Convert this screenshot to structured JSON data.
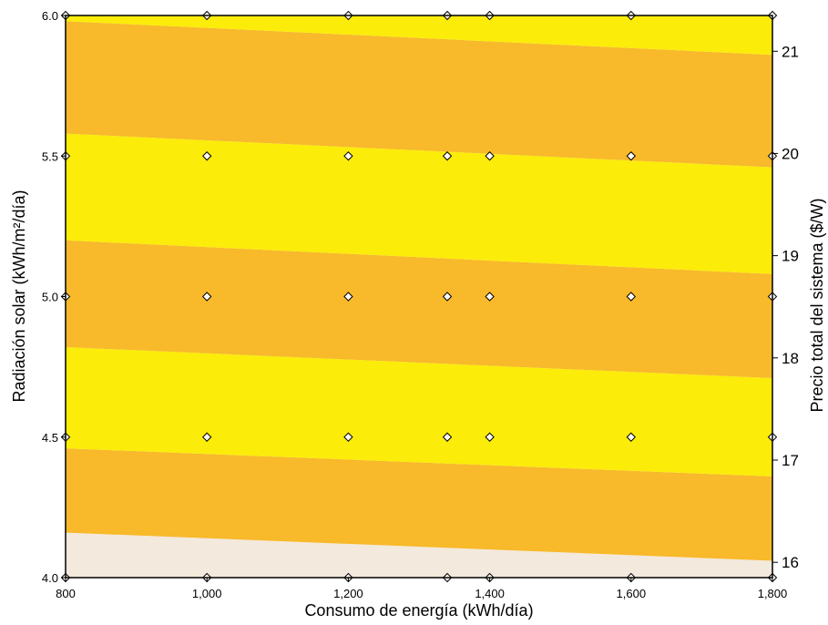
{
  "chart_data": {
    "type": "contour",
    "xlabel": "Consumo de energía  (kWh/día)",
    "ylabel": "Radiación solar (kWh/m²/día)",
    "zlabel": "Precio total del sistema ($/W)",
    "xlim": [
      800,
      1800
    ],
    "ylim": [
      4.0,
      6.0
    ],
    "x_ticks": [
      800,
      1000,
      1200,
      1400,
      1600,
      1800
    ],
    "x_tick_labels": [
      "800",
      "1,000",
      "1,200",
      "1,400",
      "1,600",
      "1,800"
    ],
    "y_ticks": [
      4.0,
      4.5,
      5.0,
      5.5,
      6.0
    ],
    "y_tick_labels": [
      "4.0",
      "4.5",
      "5.0",
      "5.5",
      "6.0"
    ],
    "z_ticks": [
      16,
      17,
      18,
      19,
      20,
      21
    ],
    "z_tick_labels": [
      "16",
      "17",
      "18",
      "19",
      "20",
      "21"
    ],
    "band_colors": [
      "#f3e9dc",
      "#f8b92a",
      "#fbec0a",
      "#f8b92a",
      "#fbec0a",
      "#f8b92a",
      "#fbec0a"
    ],
    "boundaries_x": [
      800,
      1800
    ],
    "boundaries": [
      {
        "y": [
          4.16,
          4.06
        ]
      },
      {
        "y": [
          4.46,
          4.36
        ]
      },
      {
        "y": [
          4.82,
          4.71
        ]
      },
      {
        "y": [
          5.2,
          5.08
        ]
      },
      {
        "y": [
          5.58,
          5.46
        ]
      },
      {
        "y": [
          5.98,
          5.86
        ]
      }
    ],
    "design_points": [
      {
        "x": 800,
        "y": 4.0
      },
      {
        "x": 1000,
        "y": 4.0
      },
      {
        "x": 1200,
        "y": 4.0
      },
      {
        "x": 1340,
        "y": 4.0
      },
      {
        "x": 1400,
        "y": 4.0
      },
      {
        "x": 1600,
        "y": 4.0
      },
      {
        "x": 1800,
        "y": 4.0
      },
      {
        "x": 800,
        "y": 4.5
      },
      {
        "x": 1000,
        "y": 4.5
      },
      {
        "x": 1200,
        "y": 4.5
      },
      {
        "x": 1340,
        "y": 4.5
      },
      {
        "x": 1400,
        "y": 4.5
      },
      {
        "x": 1600,
        "y": 4.5
      },
      {
        "x": 1800,
        "y": 4.5
      },
      {
        "x": 800,
        "y": 5.0
      },
      {
        "x": 1000,
        "y": 5.0
      },
      {
        "x": 1200,
        "y": 5.0
      },
      {
        "x": 1340,
        "y": 5.0
      },
      {
        "x": 1400,
        "y": 5.0
      },
      {
        "x": 1600,
        "y": 5.0
      },
      {
        "x": 1800,
        "y": 5.0
      },
      {
        "x": 800,
        "y": 5.5
      },
      {
        "x": 1000,
        "y": 5.5
      },
      {
        "x": 1200,
        "y": 5.5
      },
      {
        "x": 1340,
        "y": 5.5
      },
      {
        "x": 1400,
        "y": 5.5
      },
      {
        "x": 1600,
        "y": 5.5
      },
      {
        "x": 1800,
        "y": 5.5
      },
      {
        "x": 800,
        "y": 6.0
      },
      {
        "x": 1000,
        "y": 6.0
      },
      {
        "x": 1200,
        "y": 6.0
      },
      {
        "x": 1340,
        "y": 6.0
      },
      {
        "x": 1400,
        "y": 6.0
      },
      {
        "x": 1600,
        "y": 6.0
      },
      {
        "x": 1800,
        "y": 6.0
      }
    ],
    "grid": false
  }
}
